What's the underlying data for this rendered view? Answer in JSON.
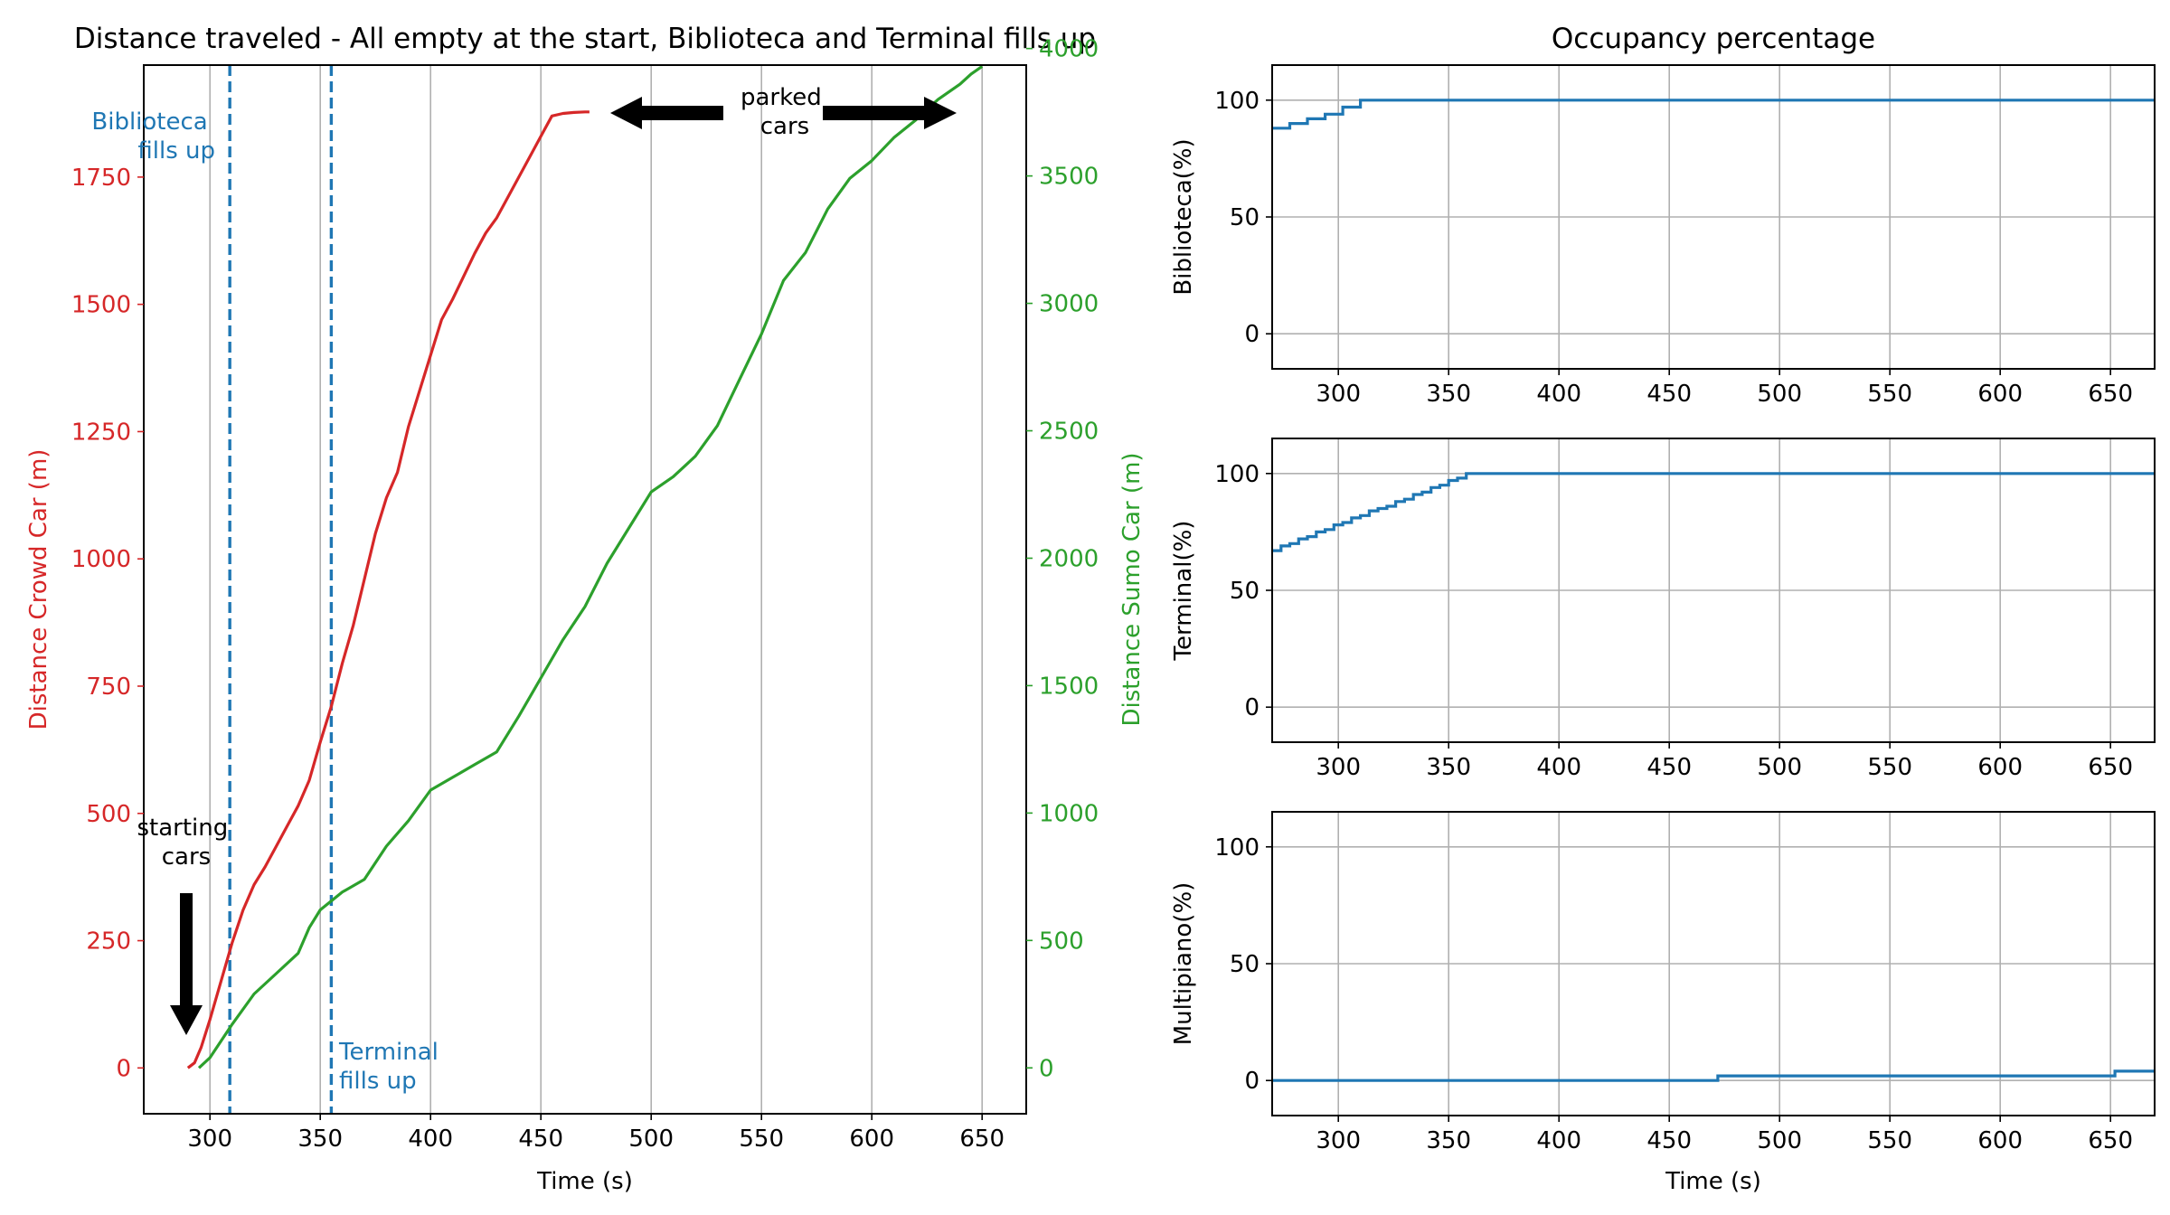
{
  "colors": {
    "crowd": "#d62728",
    "sumo": "#2ca02c",
    "blue": "#1f77b4",
    "black": "#000000",
    "grid": "#b0b0b0"
  },
  "left_panel": {
    "title": "Distance traveled - All empty at the start, Biblioteca and Terminal fills up",
    "xlabel": "Time (s)",
    "ylabel_left": "Distance Crowd Car (m)",
    "ylabel_right": "Distance Sumo Car (m)",
    "annotations": {
      "biblioteca": [
        "Biblioteca",
        "fills up"
      ],
      "terminal": [
        "Terminal",
        "fills up"
      ],
      "starting": [
        "starting",
        "cars"
      ],
      "parked": [
        "parked",
        "cars"
      ]
    }
  },
  "right_panel": {
    "title": "Occupancy percentage",
    "xlabel": "Time (s)"
  },
  "chart_data": [
    {
      "type": "line",
      "title": "Distance traveled - All empty at the start, Biblioteca and Terminal fills up",
      "xlabel": "Time (s)",
      "ylabel": "Distance Crowd Car (m)",
      "y2label": "Distance Sumo Car (m)",
      "xlim": [
        270,
        670
      ],
      "ylim": [
        -90,
        1970
      ],
      "y2lim": [
        -180,
        3935
      ],
      "xticks": [
        300,
        350,
        400,
        450,
        500,
        550,
        600,
        650
      ],
      "yticks": [
        0,
        250,
        500,
        750,
        1000,
        1250,
        1500,
        1750
      ],
      "y2ticks": [
        0,
        500,
        1000,
        1500,
        2000,
        2500,
        3000,
        3500,
        4000
      ],
      "grid": "x-only",
      "vlines": [
        {
          "x": 309,
          "label": "Biblioteca fills up"
        },
        {
          "x": 355,
          "label": "Terminal fills up"
        }
      ],
      "series": [
        {
          "name": "Distance Crowd Car (m)",
          "axis": "left",
          "x": [
            290,
            293,
            296,
            300,
            305,
            310,
            315,
            320,
            325,
            330,
            335,
            340,
            345,
            350,
            355,
            360,
            365,
            370,
            375,
            380,
            385,
            390,
            395,
            400,
            405,
            410,
            415,
            420,
            425,
            430,
            435,
            440,
            445,
            450,
            455,
            460,
            465,
            470,
            472
          ],
          "y": [
            0,
            10,
            40,
            95,
            170,
            245,
            310,
            360,
            395,
            435,
            475,
            515,
            565,
            640,
            710,
            795,
            870,
            960,
            1050,
            1120,
            1170,
            1260,
            1330,
            1400,
            1470,
            1510,
            1555,
            1600,
            1640,
            1670,
            1710,
            1750,
            1790,
            1830,
            1870,
            1875,
            1877,
            1878,
            1878
          ]
        },
        {
          "name": "Distance Sumo Car (m)",
          "axis": "right",
          "x": [
            295,
            300,
            310,
            320,
            330,
            340,
            345,
            350,
            360,
            370,
            380,
            390,
            400,
            410,
            420,
            430,
            440,
            450,
            460,
            470,
            480,
            490,
            500,
            510,
            520,
            530,
            540,
            550,
            560,
            570,
            580,
            590,
            600,
            610,
            620,
            630,
            640,
            645,
            650
          ],
          "y": [
            0,
            40,
            170,
            290,
            370,
            450,
            550,
            620,
            690,
            740,
            870,
            970,
            1090,
            1140,
            1190,
            1240,
            1380,
            1530,
            1680,
            1810,
            1980,
            2120,
            2260,
            2320,
            2400,
            2520,
            2700,
            2880,
            3090,
            3200,
            3370,
            3490,
            3560,
            3650,
            3720,
            3800,
            3860,
            3900,
            3930
          ]
        }
      ]
    },
    {
      "type": "line",
      "title": "Occupancy percentage",
      "xlabel": "",
      "ylabel": "Biblioteca(%)",
      "xlim": [
        270,
        670
      ],
      "ylim": [
        -15,
        115
      ],
      "xticks": [
        300,
        350,
        400,
        450,
        500,
        550,
        600,
        650
      ],
      "yticks": [
        0,
        50,
        100
      ],
      "grid": "both",
      "series": [
        {
          "name": "Biblioteca(%)",
          "step": true,
          "x": [
            270,
            278,
            286,
            294,
            302,
            310,
            670
          ],
          "y": [
            88,
            90,
            92,
            94,
            97,
            100,
            100
          ]
        }
      ]
    },
    {
      "type": "line",
      "ylabel": "Terminal(%)",
      "xlim": [
        270,
        670
      ],
      "ylim": [
        -15,
        115
      ],
      "xticks": [
        300,
        350,
        400,
        450,
        500,
        550,
        600,
        650
      ],
      "yticks": [
        0,
        50,
        100
      ],
      "grid": "both",
      "series": [
        {
          "name": "Terminal(%)",
          "step": true,
          "x": [
            270,
            274,
            278,
            282,
            286,
            290,
            294,
            298,
            302,
            306,
            310,
            314,
            318,
            322,
            326,
            330,
            334,
            338,
            342,
            346,
            350,
            354,
            358,
            670
          ],
          "y": [
            67,
            69,
            70,
            72,
            73,
            75,
            76,
            78,
            79,
            81,
            82,
            84,
            85,
            86,
            88,
            89,
            91,
            92,
            94,
            95,
            97,
            98,
            100,
            100
          ]
        }
      ]
    },
    {
      "type": "line",
      "xlabel": "Time (s)",
      "ylabel": "Multipiano(%)",
      "xlim": [
        270,
        670
      ],
      "ylim": [
        -15,
        115
      ],
      "xticks": [
        300,
        350,
        400,
        450,
        500,
        550,
        600,
        650
      ],
      "yticks": [
        0,
        50,
        100
      ],
      "grid": "both",
      "series": [
        {
          "name": "Multipiano(%)",
          "step": true,
          "x": [
            270,
            472,
            652,
            670
          ],
          "y": [
            0,
            2,
            4,
            4
          ]
        }
      ]
    }
  ]
}
